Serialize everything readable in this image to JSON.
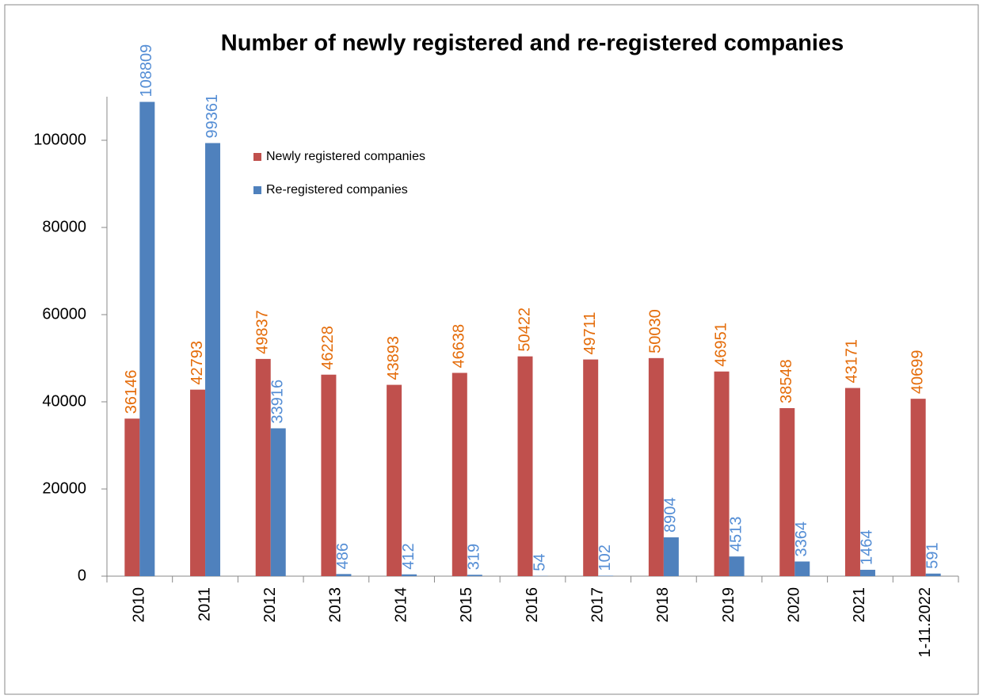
{
  "chart_data": {
    "type": "bar",
    "title": "Number of newly registered and re-registered companies",
    "categories": [
      "2010",
      "2011",
      "2012",
      "2013",
      "2014",
      "2015",
      "2016",
      "2017",
      "2018",
      "2019",
      "2020",
      "2021",
      "1-11.2022"
    ],
    "series": [
      {
        "name": "Newly registered companies",
        "color": "#c0504d",
        "label_color": "#e46c0a",
        "values": [
          36146,
          42793,
          49837,
          46228,
          43893,
          46638,
          50422,
          49711,
          50030,
          46951,
          38548,
          43171,
          40699
        ]
      },
      {
        "name": "Re-registered companies",
        "color": "#4f81bd",
        "label_color": "#558ed5",
        "values": [
          108809,
          99361,
          33916,
          486,
          412,
          319,
          54,
          102,
          8904,
          4513,
          3364,
          1464,
          591
        ]
      }
    ],
    "ylim": [
      0,
      110000
    ],
    "yticks": [
      0,
      20000,
      40000,
      60000,
      80000,
      100000
    ],
    "grid": false,
    "legend": "top-left"
  }
}
